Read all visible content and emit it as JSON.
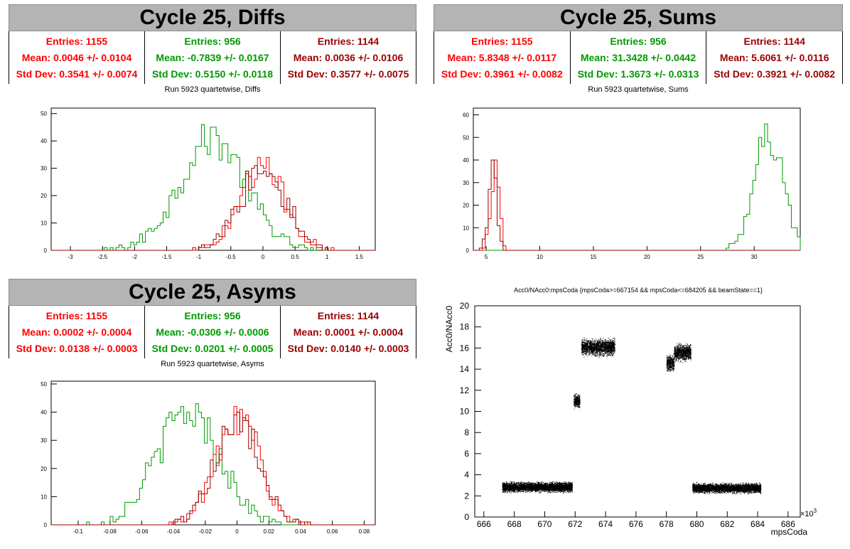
{
  "panels": {
    "diffs": {
      "title": "Cycle 25, Diffs",
      "subtitle": "Run 5923 quartetwise, Diffs",
      "stats": [
        {
          "entries": "Entries: 1155",
          "mean": "Mean: 0.0046 +/- 0.0104",
          "std": "Std Dev: 0.3541 +/- 0.0074",
          "color": "#ff0000"
        },
        {
          "entries": "Entries: 956",
          "mean": "Mean: -0.7839 +/- 0.0167",
          "std": "Std Dev: 0.5150 +/- 0.0118",
          "color": "#009900"
        },
        {
          "entries": "Entries: 1144",
          "mean": "Mean: 0.0036 +/- 0.0106",
          "std": "Std Dev: 0.3577 +/- 0.0075",
          "color": "#990000"
        }
      ]
    },
    "sums": {
      "title": "Cycle 25, Sums",
      "subtitle": "Run 5923 quartetwise, Sums",
      "stats": [
        {
          "entries": "Entries: 1155",
          "mean": "Mean: 5.8348 +/- 0.0117",
          "std": "Std Dev: 0.3961 +/- 0.0082",
          "color": "#ff0000"
        },
        {
          "entries": "Entries: 956",
          "mean": "Mean: 31.3428 +/- 0.0442",
          "std": "Std Dev: 1.3673 +/- 0.0313",
          "color": "#009900"
        },
        {
          "entries": "Entries: 1144",
          "mean": "Mean: 5.6061 +/- 0.0116",
          "std": "Std Dev: 0.3921 +/- 0.0082",
          "color": "#990000"
        }
      ]
    },
    "asyms": {
      "title": "Cycle 25, Asyms",
      "subtitle": "Run 5923 quartetwise, Asyms",
      "stats": [
        {
          "entries": "Entries: 1155",
          "mean": "Mean: 0.0002 +/- 0.0004",
          "std": "Std Dev: 0.0138 +/- 0.0003",
          "color": "#ff0000"
        },
        {
          "entries": "Entries: 956",
          "mean": "Mean: -0.0306 +/- 0.0006",
          "std": "Std Dev: 0.0201 +/- 0.0005",
          "color": "#009900"
        },
        {
          "entries": "Entries: 1144",
          "mean": "Mean: 0.0001 +/- 0.0004",
          "std": "Std Dev: 0.0140 +/- 0.0003",
          "color": "#990000"
        }
      ]
    },
    "scatter": {
      "title": "Acc0/NAcc0:mpsCoda {mpsCoda>=667154 && mpsCoda<=684205 && beamState==1}",
      "ylabel": "Acc0/NAcc0",
      "xlabel": "mpsCoda",
      "xexp": "×10",
      "xexp_power": "3"
    }
  },
  "chart_data": [
    {
      "type": "histogram",
      "title": "Run 5923 quartetwise, Diffs",
      "xlim": [
        -3.3,
        1.75
      ],
      "ylim": [
        0,
        52
      ],
      "xticks": [
        "-3",
        "-2.5",
        "-2",
        "-1.5",
        "-1",
        "-0.5",
        "0",
        "0.5",
        "1",
        "1.5"
      ],
      "yticks": [
        "0",
        "10",
        "20",
        "30",
        "40",
        "50"
      ],
      "series": [
        {
          "color": "#009900",
          "entries": 956,
          "mean": -0.7839,
          "std": 0.515,
          "peak": 50
        },
        {
          "color": "#ff0000",
          "entries": 1155,
          "mean": 0.0046,
          "std": 0.3541,
          "peak": 36
        },
        {
          "color": "#990000",
          "entries": 1144,
          "mean": 0.0036,
          "std": 0.3577,
          "peak": 37
        }
      ]
    },
    {
      "type": "histogram",
      "title": "Run 5923 quartetwise, Sums",
      "xlim": [
        3.8,
        34.3
      ],
      "ylim": [
        0,
        63
      ],
      "xticks": [
        "5",
        "10",
        "15",
        "20",
        "25",
        "30"
      ],
      "yticks": [
        "0",
        "10",
        "20",
        "30",
        "40",
        "50",
        "60"
      ],
      "series": [
        {
          "color": "#009900",
          "entries": 956,
          "mean": 31.3428,
          "std": 1.3673,
          "peak": 61
        },
        {
          "color": "#ff0000",
          "entries": 1155,
          "mean": 5.8348,
          "std": 0.3961,
          "peak": 45
        },
        {
          "color": "#990000",
          "entries": 1144,
          "mean": 5.6061,
          "std": 0.3921,
          "peak": 44
        }
      ]
    },
    {
      "type": "histogram",
      "title": "Run 5923 quartetwise, Asyms",
      "xlim": [
        -0.117,
        0.087
      ],
      "ylim": [
        0,
        51
      ],
      "xticks": [
        "-0.1",
        "-0.08",
        "-0.06",
        "-0.04",
        "-0.02",
        "0",
        "0.02",
        "0.04",
        "0.06",
        "0.08"
      ],
      "yticks": [
        "0",
        "10",
        "20",
        "30",
        "40",
        "50"
      ],
      "series": [
        {
          "color": "#009900",
          "entries": 956,
          "mean": -0.0306,
          "std": 0.0201,
          "peak": 49
        },
        {
          "color": "#ff0000",
          "entries": 1155,
          "mean": 0.0002,
          "std": 0.0138,
          "peak": 48
        },
        {
          "color": "#990000",
          "entries": 1144,
          "mean": 0.0001,
          "std": 0.014,
          "peak": 45
        }
      ]
    },
    {
      "type": "scatter",
      "title": "Acc0/NAcc0:mpsCoda {mpsCoda>=667154 && mpsCoda<=684205 && beamState==1}",
      "xlabel": "mpsCoda",
      "ylabel": "Acc0/NAcc0",
      "xlim": [
        665.4,
        686.8
      ],
      "ylim": [
        0,
        20
      ],
      "xticks": [
        "666",
        "668",
        "670",
        "672",
        "674",
        "676",
        "678",
        "680",
        "682",
        "684",
        "686"
      ],
      "yticks": [
        "0",
        "2",
        "4",
        "6",
        "8",
        "10",
        "12",
        "14",
        "16",
        "18",
        "20"
      ],
      "clusters": [
        {
          "x": [
            667.2,
            671.8
          ],
          "y_center": 2.85,
          "y_spread": 0.35
        },
        {
          "x": [
            671.9,
            672.3
          ],
          "y_center": 11.0,
          "y_spread": 0.5
        },
        {
          "x": [
            672.4,
            674.6
          ],
          "y_center": 16.1,
          "y_spread": 0.6
        },
        {
          "x": [
            678.0,
            678.5
          ],
          "y_center": 14.6,
          "y_spread": 0.6
        },
        {
          "x": [
            678.5,
            679.6
          ],
          "y_center": 15.6,
          "y_spread": 0.6
        },
        {
          "x": [
            679.7,
            684.2
          ],
          "y_center": 2.75,
          "y_spread": 0.35
        }
      ]
    }
  ]
}
